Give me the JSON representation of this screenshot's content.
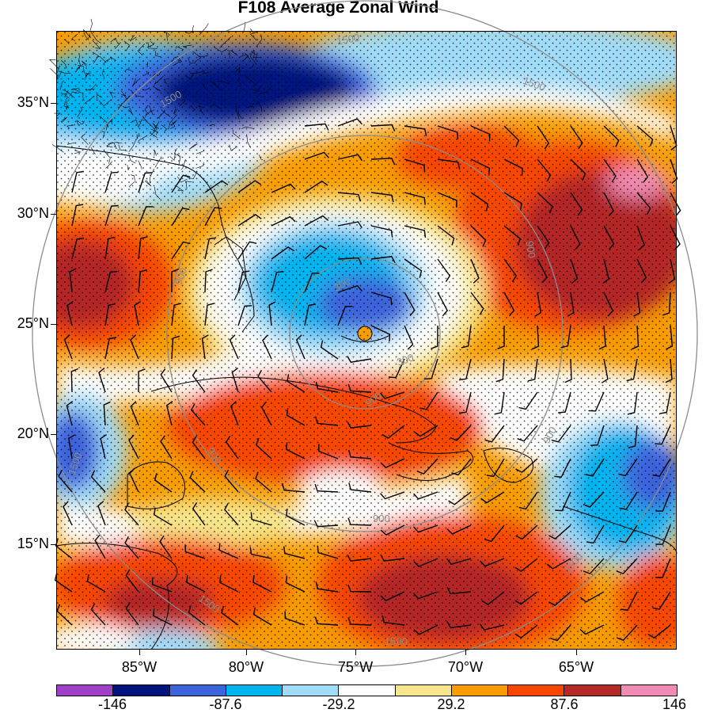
{
  "title": "F108 Average Zonal Wind",
  "lat_labels": [
    "35°N",
    "30°N",
    "25°N",
    "20°N",
    "15°N"
  ],
  "lon_labels": [
    "85°W",
    "80°W",
    "75°W",
    "70°W",
    "65°W"
  ],
  "colorbar": {
    "colors": [
      "#a040c8",
      "#00147e",
      "#3c64dc",
      "#00b4f0",
      "#a0dcf8",
      "#ffffff",
      "#f8e68c",
      "#f89c00",
      "#f84600",
      "#b42828",
      "#f08cb4"
    ],
    "labels": [
      "-146",
      "-87.6",
      "-29.2",
      "29.2",
      "87.6",
      "146"
    ]
  },
  "contour_labels": [
    "1500",
    "1500",
    "1500",
    "900",
    "900",
    "900",
    "900",
    "900",
    "300",
    "900",
    "300",
    "1500",
    "1500",
    "1500",
    "1500"
  ],
  "legend_semantics": {
    "field": "Average Zonal Wind",
    "colormap": "diverging purple-blue-white-yellow-red-pink",
    "overlays": [
      "wind barbs",
      "stippling",
      "range rings",
      "county and coastline boundaries"
    ]
  }
}
